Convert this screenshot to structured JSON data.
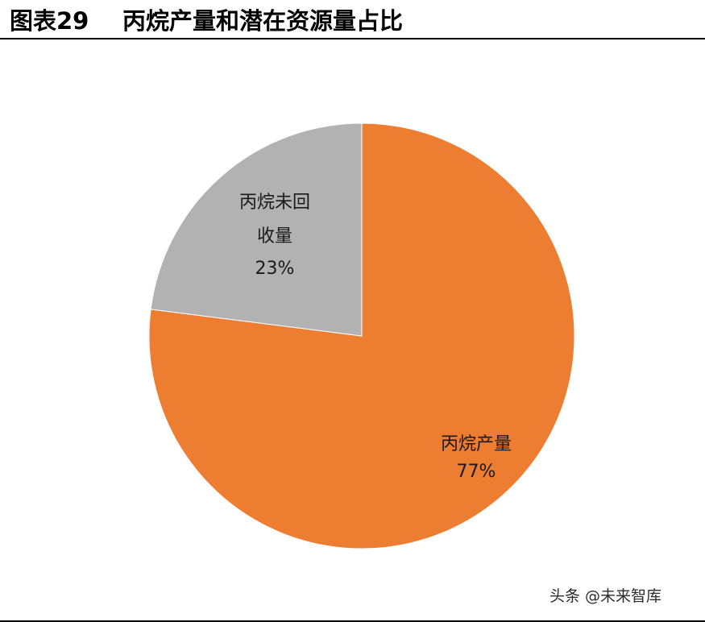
{
  "header": {
    "figure_label": "图表29",
    "title": "丙烷产量和潜在资源量占比"
  },
  "chart_data": {
    "type": "pie",
    "start_angle_deg": 0,
    "direction": "clockwise",
    "slices": [
      {
        "label_line1": "丙烷产量",
        "label_line2": "",
        "percent_text": "77%",
        "value": 77,
        "color": "#ED7D31"
      },
      {
        "label_line1": "丙烷未回",
        "label_line2": "收量",
        "percent_text": "23%",
        "value": 23,
        "color": "#B2B2B2"
      }
    ]
  },
  "watermark": {
    "text": "头条 @未来智库"
  }
}
